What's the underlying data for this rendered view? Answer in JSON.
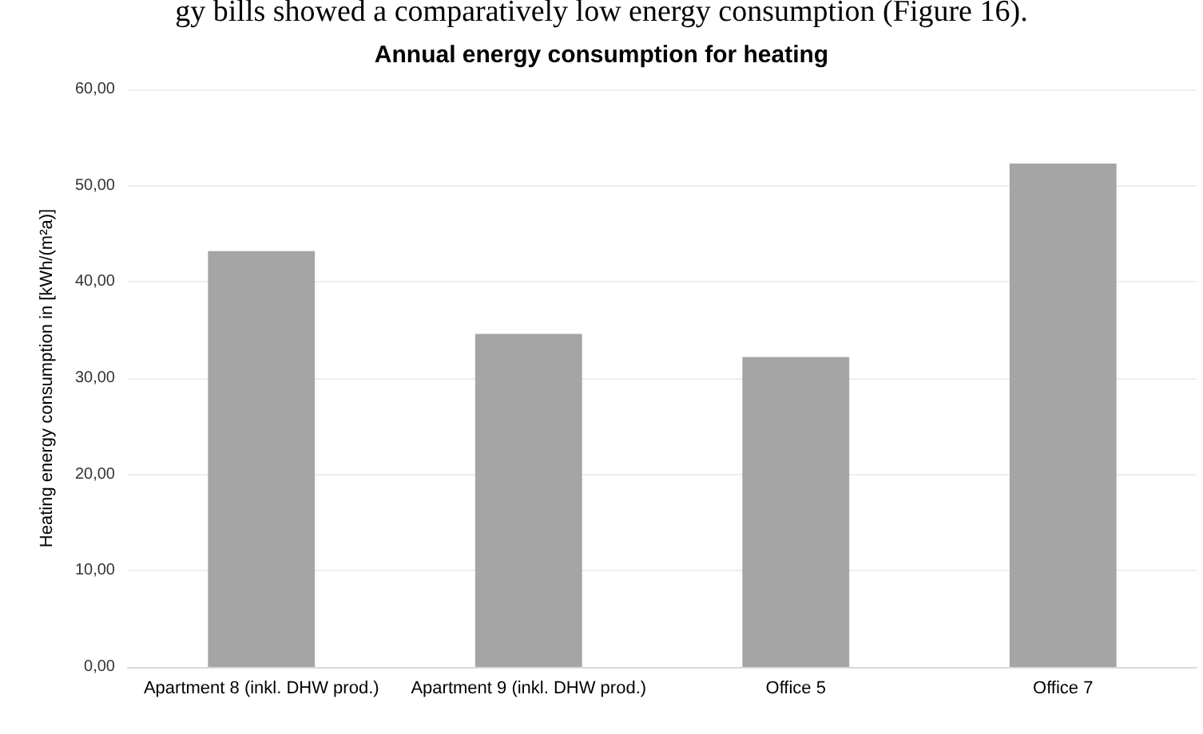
{
  "chart_data": {
    "type": "bar",
    "title": "Annual energy consumption for heating",
    "ylabel": "Heating energy consumption in [kWh/(m²a)]",
    "annotations": [
      "gy bills showed a comparatively low energy consumption (Figure 16)."
    ],
    "categories": [
      "Apartment 8 (inkl. DHW prod.)",
      "Apartment 9 (inkl. DHW prod.)",
      "Office 5",
      "Office 7"
    ],
    "values": [
      43.2,
      34.6,
      32.2,
      52.3
    ],
    "color": "#a5a5a5",
    "ylim": [
      0,
      60
    ],
    "yticks": [
      {
        "value": 0,
        "label": "0,00"
      },
      {
        "value": 10,
        "label": "10,00"
      },
      {
        "value": 20,
        "label": "20,00"
      },
      {
        "value": 30,
        "label": "30,00"
      },
      {
        "value": 40,
        "label": "40,00"
      },
      {
        "value": 50,
        "label": "50,00"
      },
      {
        "value": 60,
        "label": "60,00"
      }
    ],
    "grid": "y"
  }
}
